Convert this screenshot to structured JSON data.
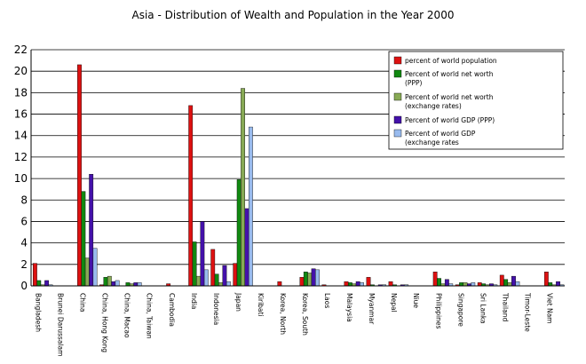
{
  "chart_data": {
    "type": "bar",
    "title": "Asia - Distribution of Wealth and Population in the Year 2000",
    "xlabel": "",
    "ylabel": "",
    "ylim": [
      0,
      22
    ],
    "yticks": [
      "0",
      "2",
      "4",
      "6",
      "8",
      "10",
      "12",
      "14",
      "16",
      "18",
      "20",
      "22"
    ],
    "grid": "horizontal",
    "legend_position": "top-right",
    "categories": [
      "Bangladesh",
      "Brunei Darussalam",
      "China",
      "China, Hong Kong",
      "China, Macao",
      "China, Taiwan",
      "Cambodia",
      "India",
      "Indonesia",
      "Japan",
      "Kiribati",
      "Korea, North",
      "Korea, South",
      "Laos",
      "Malaysia",
      "Myanmar",
      "Nepal",
      "Niue",
      "Philippines",
      "Singapore",
      "Sri Lanka",
      "Thailand",
      "Timor-Leste",
      "Viet Nam"
    ],
    "series": [
      {
        "name": "percent of world population",
        "color": "#dd1111",
        "values": [
          2.1,
          0.0,
          20.6,
          0.1,
          0.0,
          0.0,
          0.2,
          16.8,
          3.4,
          2.1,
          0.0,
          0.4,
          0.8,
          0.1,
          0.4,
          0.8,
          0.4,
          0.0,
          1.3,
          0.1,
          0.3,
          1.0,
          0.0,
          1.3
        ]
      },
      {
        "name": "Percent of world net worth\n(PPP)",
        "color": "#118811",
        "values": [
          0.5,
          0.0,
          8.8,
          0.8,
          0.3,
          0.0,
          0.0,
          4.1,
          1.1,
          9.9,
          0.0,
          0.0,
          1.3,
          0.0,
          0.3,
          0.1,
          0.1,
          0.0,
          0.7,
          0.3,
          0.2,
          0.6,
          0.0,
          0.3
        ]
      },
      {
        "name": "Percent of world net worth\n(exchange rates)",
        "color": "#88aa55",
        "values": [
          0.1,
          0.0,
          2.6,
          0.9,
          0.2,
          0.0,
          0.0,
          0.9,
          0.3,
          18.4,
          0.0,
          0.0,
          1.2,
          0.0,
          0.2,
          0.0,
          0.0,
          0.0,
          0.2,
          0.3,
          0.1,
          0.3,
          0.0,
          0.1
        ]
      },
      {
        "name": "Percent of world GDP (PPP)",
        "color": "#4411aa",
        "values": [
          0.5,
          0.0,
          10.4,
          0.4,
          0.3,
          0.0,
          0.0,
          6.0,
          1.9,
          7.2,
          0.0,
          0.0,
          1.6,
          0.0,
          0.4,
          0.1,
          0.1,
          0.0,
          0.6,
          0.2,
          0.2,
          0.9,
          0.0,
          0.4
        ]
      },
      {
        "name": "Percent of world GDP\n(exchange rates",
        "color": "#99bbee",
        "values": [
          0.1,
          0.0,
          3.5,
          0.5,
          0.3,
          0.0,
          0.0,
          1.5,
          0.4,
          14.8,
          0.0,
          0.0,
          1.5,
          0.0,
          0.3,
          0.1,
          0.1,
          0.0,
          0.2,
          0.3,
          0.1,
          0.4,
          0.0,
          0.1
        ]
      }
    ]
  }
}
